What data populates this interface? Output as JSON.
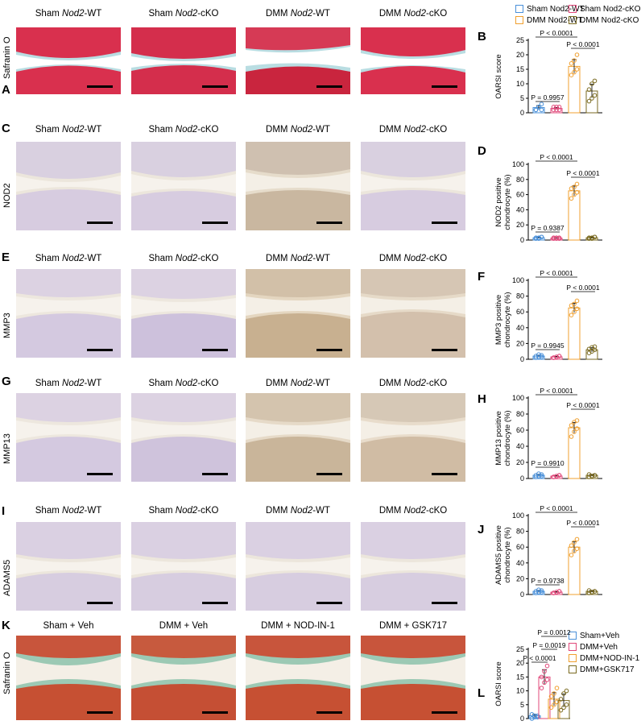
{
  "legend_top": [
    {
      "label": "Sham Nod2-WT",
      "color": "#4a90d9"
    },
    {
      "label": "Sham Nod2-cKO",
      "color": "#e0487a"
    },
    {
      "label": "DMM Nod2-WT",
      "color": "#f0a030"
    },
    {
      "label": "DMM Nod2-cKO",
      "color": "#7a6a20"
    }
  ],
  "legend_bottom": [
    {
      "label": "Sham+Veh",
      "color": "#4a90d9"
    },
    {
      "label": "DMM+Veh",
      "color": "#e0487a"
    },
    {
      "label": "DMM+NOD-IN-1",
      "color": "#f0a030"
    },
    {
      "label": "DMM+GSK717",
      "color": "#7a6a20"
    }
  ],
  "panels": {
    "A": {
      "letter": "A",
      "stain": "Safranin O"
    },
    "C": {
      "letter": "C",
      "stain": "NOD2"
    },
    "E": {
      "letter": "E",
      "stain": "MMP3"
    },
    "G": {
      "letter": "G",
      "stain": "MMP13"
    },
    "I": {
      "letter": "I",
      "stain": "ADAMS5"
    },
    "K": {
      "letter": "K",
      "stain": "Safranin O"
    }
  },
  "col_titles_top": [
    {
      "prefix": "Sham ",
      "gene": "Nod2",
      "suffix": "-WT"
    },
    {
      "prefix": "Sham ",
      "gene": "Nod2",
      "suffix": "-cKO"
    },
    {
      "prefix": "DMM ",
      "gene": "Nod2",
      "suffix": "-WT"
    },
    {
      "prefix": "DMM ",
      "gene": "Nod2",
      "suffix": "-cKO"
    }
  ],
  "col_titles_bottom": [
    "Sham + Veh",
    "DMM + Veh",
    "DMM + NOD-IN-1",
    "DMM + GSK717"
  ],
  "chart_data": [
    {
      "panel": "B",
      "type": "bar",
      "ylabel": "OARSI score",
      "ylim": [
        0,
        25
      ],
      "yticks": [
        0,
        5,
        10,
        15,
        20,
        25
      ],
      "categories": [
        "Sham Nod2-WT",
        "Sham Nod2-cKO",
        "DMM Nod2-WT",
        "DMM Nod2-cKO"
      ],
      "values": [
        1.8,
        1.5,
        16,
        7.5
      ],
      "points": [
        [
          1,
          2,
          3,
          1,
          2,
          1
        ],
        [
          1,
          2,
          1,
          2,
          1,
          2
        ],
        [
          13,
          14,
          15,
          17,
          18,
          20
        ],
        [
          4,
          5,
          6,
          8,
          10,
          11
        ]
      ],
      "annotations": [
        "P = 0.9957",
        "P < 0.0001",
        "P < 0.0001"
      ]
    },
    {
      "panel": "D",
      "type": "bar",
      "ylabel": "NOD2 positive chondrocyte (%)",
      "ylim": [
        0,
        100
      ],
      "yticks": [
        0,
        20,
        40,
        60,
        80,
        100
      ],
      "categories": [
        "Sham Nod2-WT",
        "Sham Nod2-cKO",
        "DMM Nod2-WT",
        "DMM Nod2-cKO"
      ],
      "values": [
        3,
        2.5,
        65,
        3
      ],
      "points": [
        [
          2,
          3,
          4,
          3,
          2,
          4
        ],
        [
          2,
          3,
          2,
          3,
          2,
          3
        ],
        [
          55,
          60,
          63,
          68,
          70,
          74
        ],
        [
          2,
          3,
          4,
          3,
          2,
          4
        ]
      ],
      "annotations": [
        "P = 0.9387",
        "P < 0.0001",
        "P < 0.0001"
      ]
    },
    {
      "panel": "F",
      "type": "bar",
      "ylabel": "MMP3 positive chondrocyte (%)",
      "ylim": [
        0,
        100
      ],
      "yticks": [
        0,
        20,
        40,
        60,
        80,
        100
      ],
      "categories": [
        "Sham Nod2-WT",
        "Sham Nod2-cKO",
        "DMM Nod2-WT",
        "DMM Nod2-cKO"
      ],
      "values": [
        4,
        3,
        65,
        12
      ],
      "points": [
        [
          2,
          3,
          5,
          4,
          6,
          3
        ],
        [
          2,
          3,
          4,
          2,
          3,
          4
        ],
        [
          56,
          60,
          64,
          68,
          70,
          74
        ],
        [
          8,
          10,
          12,
          13,
          15,
          16
        ]
      ],
      "annotations": [
        "P = 0.9945",
        "P < 0.0001",
        "P < 0.0001"
      ]
    },
    {
      "panel": "H",
      "type": "bar",
      "ylabel": "MMP13 positive chondrocyte (%)",
      "ylim": [
        0,
        100
      ],
      "yticks": [
        0,
        20,
        40,
        60,
        80,
        100
      ],
      "categories": [
        "Sham Nod2-WT",
        "Sham Nod2-cKO",
        "DMM Nod2-WT",
        "DMM Nod2-cKO"
      ],
      "values": [
        4,
        3,
        63,
        4
      ],
      "points": [
        [
          2,
          3,
          5,
          4,
          6,
          3
        ],
        [
          2,
          3,
          4,
          2,
          3,
          4
        ],
        [
          52,
          58,
          62,
          66,
          70,
          72
        ],
        [
          2,
          3,
          4,
          5,
          3,
          4
        ]
      ],
      "annotations": [
        "P = 0.9910",
        "P < 0.0001",
        "P < 0.0001"
      ]
    },
    {
      "panel": "J",
      "type": "bar",
      "ylabel": "ADAMS5 positive chondrocyte (%)",
      "ylim": [
        0,
        100
      ],
      "yticks": [
        0,
        20,
        40,
        60,
        80,
        100
      ],
      "categories": [
        "Sham Nod2-WT",
        "Sham Nod2-cKO",
        "DMM Nod2-WT",
        "DMM Nod2-cKO"
      ],
      "values": [
        4,
        3,
        60,
        4
      ],
      "points": [
        [
          2,
          3,
          5,
          4,
          6,
          3
        ],
        [
          2,
          3,
          4,
          2,
          3,
          4
        ],
        [
          50,
          55,
          58,
          62,
          66,
          70
        ],
        [
          2,
          3,
          4,
          5,
          3,
          4
        ]
      ],
      "annotations": [
        "P = 0.9738",
        "P < 0.0001",
        "P < 0.0001"
      ]
    },
    {
      "panel": "L",
      "type": "bar",
      "ylabel": "OARSI score",
      "ylim": [
        0,
        25
      ],
      "yticks": [
        0,
        5,
        10,
        15,
        20,
        25
      ],
      "categories": [
        "Sham+Veh",
        "DMM+Veh",
        "DMM+NOD-IN-1",
        "DMM+GSK717"
      ],
      "values": [
        1,
        15,
        7,
        6.5
      ],
      "points": [
        [
          0,
          0.5,
          1,
          1.5,
          1,
          0.5
        ],
        [
          11,
          13,
          14,
          15,
          17,
          19
        ],
        [
          4,
          5,
          6,
          8,
          9,
          11
        ],
        [
          3,
          4,
          5,
          7,
          9,
          10
        ]
      ],
      "annotations": [
        "P < 0.0001",
        "P = 0.0019",
        "P = 0.0012"
      ]
    }
  ]
}
